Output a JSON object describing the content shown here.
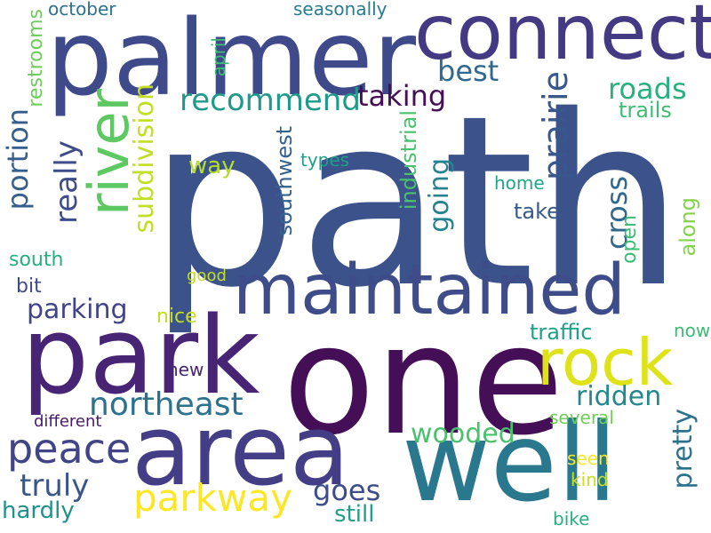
{
  "words": [
    {
      "id": "path",
      "text": "path",
      "color": "#3b528b"
    },
    {
      "id": "palmer",
      "text": "palmer",
      "color": "#3e4a89"
    },
    {
      "id": "connect",
      "text": "connect",
      "color": "#443983"
    },
    {
      "id": "one",
      "text": "one",
      "color": "#440f56"
    },
    {
      "id": "park",
      "text": "park",
      "color": "#482475"
    },
    {
      "id": "area",
      "text": "area",
      "color": "#433e85"
    },
    {
      "id": "well",
      "text": "well",
      "color": "#2a788e"
    },
    {
      "id": "maintained",
      "text": "maintained",
      "color": "#3e4c8a"
    },
    {
      "id": "river",
      "text": "river",
      "color": "#5ec962"
    },
    {
      "id": "rock",
      "text": "rock",
      "color": "#dde318"
    },
    {
      "id": "parkway",
      "text": "parkway",
      "color": "#fde725"
    },
    {
      "id": "peace",
      "text": "peace",
      "color": "#414487"
    },
    {
      "id": "northeast",
      "text": "northeast",
      "color": "#2c728e"
    },
    {
      "id": "recommend",
      "text": "recommend",
      "color": "#1f9a8a"
    },
    {
      "id": "taking",
      "text": "taking",
      "color": "#440f56"
    },
    {
      "id": "best",
      "text": "best",
      "color": "#31688e"
    },
    {
      "id": "roads",
      "text": "roads",
      "color": "#2ab07f"
    },
    {
      "id": "trails",
      "text": "trails",
      "color": "#3dbc74"
    },
    {
      "id": "prairie",
      "text": "prairie",
      "color": "#38588c"
    },
    {
      "id": "cross",
      "text": "cross",
      "color": "#31688e"
    },
    {
      "id": "open",
      "text": "open",
      "color": "#3dbc74"
    },
    {
      "id": "along",
      "text": "along",
      "color": "#84d44b"
    },
    {
      "id": "subdivision",
      "text": "subdivision",
      "color": "#c2df23"
    },
    {
      "id": "southwest",
      "text": "southwest",
      "color": "#34618d"
    },
    {
      "id": "industrial",
      "text": "industrial",
      "color": "#4ac16d"
    },
    {
      "id": "going",
      "text": "going",
      "color": "#26828e"
    },
    {
      "id": "really",
      "text": "really",
      "color": "#3e4c8a"
    },
    {
      "id": "portion",
      "text": "portion",
      "color": "#355e8d"
    },
    {
      "id": "restrooms",
      "text": "restrooms",
      "color": "#6ccd5a"
    },
    {
      "id": "april",
      "text": "april",
      "color": "#3dbc74"
    },
    {
      "id": "october",
      "text": "october",
      "color": "#2c728e"
    },
    {
      "id": "seasonally",
      "text": "seasonally",
      "color": "#287c8e"
    },
    {
      "id": "way",
      "text": "way",
      "color": "#b5de2b"
    },
    {
      "id": "types",
      "text": "types",
      "color": "#1f9e89"
    },
    {
      "id": "home",
      "text": "home",
      "color": "#21a685"
    },
    {
      "id": "take",
      "text": "take",
      "color": "#38588c"
    },
    {
      "id": "parking",
      "text": "parking",
      "color": "#414487"
    },
    {
      "id": "south",
      "text": "south",
      "color": "#29af7f"
    },
    {
      "id": "bit",
      "text": "bit",
      "color": "#3e4a89"
    },
    {
      "id": "nice",
      "text": "nice",
      "color": "#c2df23"
    },
    {
      "id": "good",
      "text": "good",
      "color": "#c2df23"
    },
    {
      "id": "traffic",
      "text": "traffic",
      "color": "#1fa187"
    },
    {
      "id": "now",
      "text": "now",
      "color": "#3dbc74"
    },
    {
      "id": "new",
      "text": "new",
      "color": "#482475"
    },
    {
      "id": "ridden",
      "text": "ridden",
      "color": "#24878e"
    },
    {
      "id": "different",
      "text": "different",
      "color": "#481b6d"
    },
    {
      "id": "several",
      "text": "several",
      "color": "#6ece58"
    },
    {
      "id": "wooded",
      "text": "wooded",
      "color": "#4ac16d"
    },
    {
      "id": "pretty",
      "text": "pretty",
      "color": "#2c728e"
    },
    {
      "id": "truly",
      "text": "truly",
      "color": "#39568c"
    },
    {
      "id": "goes",
      "text": "goes",
      "color": "#3e4c8a"
    },
    {
      "id": "seen",
      "text": "seen",
      "color": "#fde725"
    },
    {
      "id": "kind",
      "text": "kind",
      "color": "#c8e020"
    },
    {
      "id": "hardly",
      "text": "hardly",
      "color": "#21918c"
    },
    {
      "id": "still",
      "text": "still",
      "color": "#1f9e89"
    },
    {
      "id": "bike",
      "text": "bike",
      "color": "#29af7f"
    }
  ]
}
